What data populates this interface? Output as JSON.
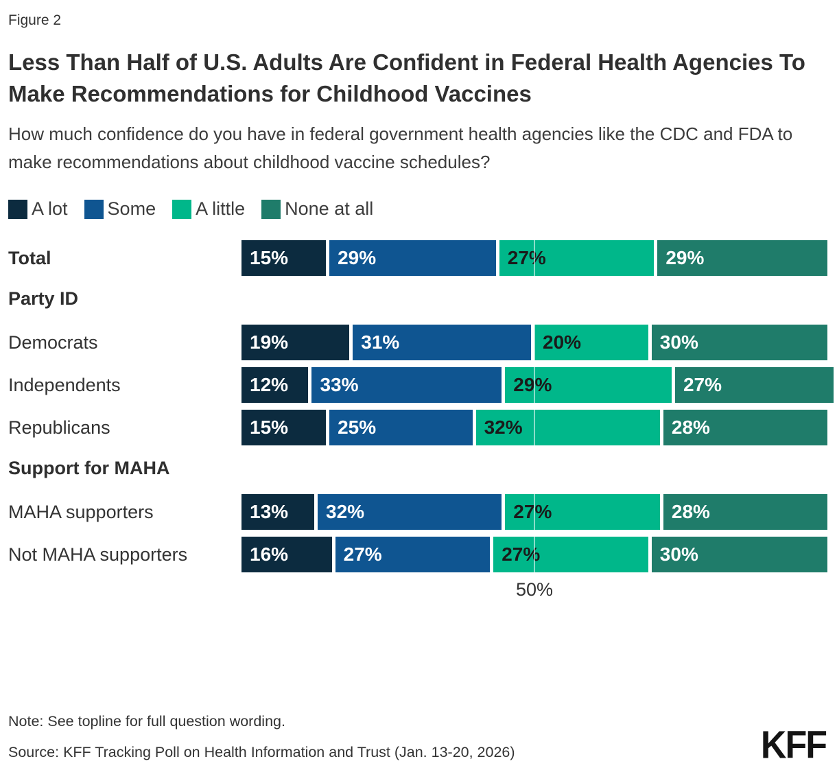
{
  "figure_label": "Figure 2",
  "title": "Less Than Half of U.S. Adults Are Confident in Federal Health Agencies To Make Recommendations for Childhood Vaccines",
  "subtitle": "How much confidence do you have in federal government health agencies like the CDC and FDA to make recommendations about childhood vaccine schedules?",
  "chart_data": {
    "type": "bar",
    "stacked": true,
    "orientation": "horizontal",
    "series": [
      "A lot",
      "Some",
      "A little",
      "None at all"
    ],
    "series_colors": [
      "#0c2b3f",
      "#0f5591",
      "#00b78a",
      "#1f7c6a"
    ],
    "value_label_colors": [
      "#ffffff",
      "#ffffff",
      "#1a1a1a",
      "#ffffff"
    ],
    "value_suffix": "%",
    "xlim": [
      0,
      100
    ],
    "x_tick": {
      "value": 50,
      "label": "50%"
    },
    "grid": "single-50pct-line-over-bars",
    "legend_position": "top",
    "groups": [
      {
        "type": "bar",
        "label": "Total",
        "bold": true,
        "values": [
          15,
          29,
          27,
          29
        ]
      },
      {
        "type": "header",
        "label": "Party ID"
      },
      {
        "type": "bar",
        "label": "Democrats",
        "bold": false,
        "values": [
          19,
          31,
          20,
          30
        ]
      },
      {
        "type": "bar",
        "label": "Independents",
        "bold": false,
        "values": [
          12,
          33,
          29,
          27
        ]
      },
      {
        "type": "bar",
        "label": "Republicans",
        "bold": false,
        "values": [
          15,
          25,
          32,
          28
        ]
      },
      {
        "type": "header",
        "label": "Support for MAHA"
      },
      {
        "type": "bar",
        "label": "MAHA supporters",
        "bold": false,
        "values": [
          13,
          32,
          27,
          28
        ]
      },
      {
        "type": "bar",
        "label": "Not MAHA supporters",
        "bold": false,
        "values": [
          16,
          27,
          27,
          30
        ]
      }
    ]
  },
  "note": "Note: See topline for full question wording.",
  "source": "Source: KFF Tracking Poll on Health Information and Trust (Jan. 13-20, 2026)",
  "logo": "KFF"
}
